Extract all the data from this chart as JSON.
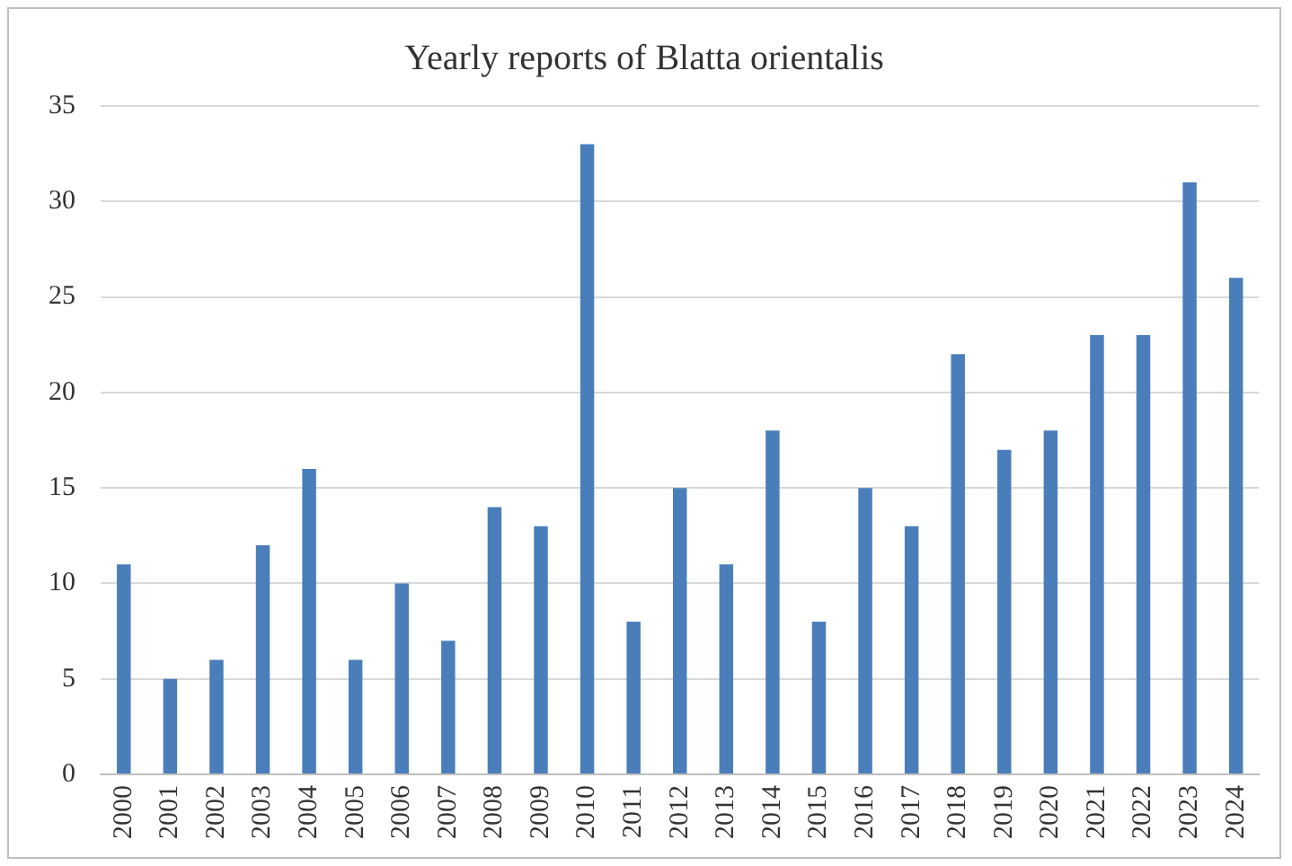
{
  "chart_data": {
    "type": "bar",
    "title": "Yearly reports of Blatta orientalis",
    "categories": [
      "2000",
      "2001",
      "2002",
      "2003",
      "2004",
      "2005",
      "2006",
      "2007",
      "2008",
      "2009",
      "2010",
      "2011",
      "2012",
      "2013",
      "2014",
      "2015",
      "2016",
      "2017",
      "2018",
      "2019",
      "2020",
      "2021",
      "2022",
      "2023",
      "2024"
    ],
    "values": [
      11,
      5,
      6,
      12,
      16,
      6,
      10,
      7,
      14,
      13,
      33,
      8,
      15,
      11,
      18,
      8,
      15,
      13,
      22,
      17,
      18,
      23,
      23,
      31,
      26
    ],
    "color": "#4a7ebb",
    "ylim": [
      0,
      35
    ],
    "yticks": [
      0,
      5,
      10,
      15,
      20,
      25,
      30,
      35
    ],
    "grid": "y"
  }
}
